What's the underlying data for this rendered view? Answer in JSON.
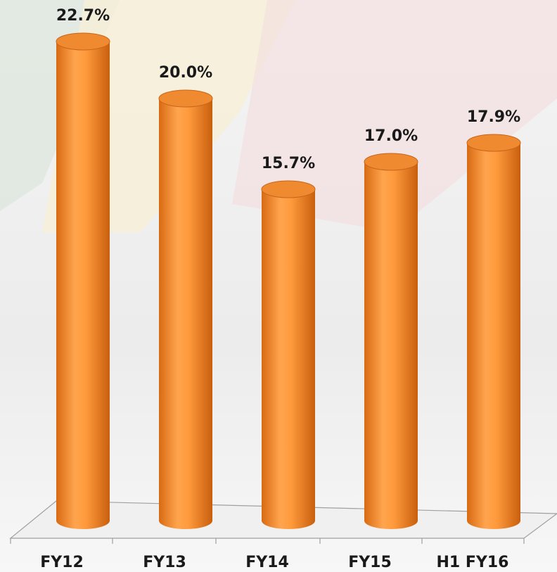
{
  "chart_data": {
    "type": "bar",
    "categories": [
      "FY12",
      "FY13",
      "FY14",
      "FY15",
      "H1 FY16"
    ],
    "values": [
      22.7,
      20.0,
      15.7,
      17.0,
      17.9
    ],
    "value_labels": [
      "22.7%",
      "20.0%",
      "15.7%",
      "17.0%",
      "17.9%"
    ],
    "color": "#f08a30"
  }
}
